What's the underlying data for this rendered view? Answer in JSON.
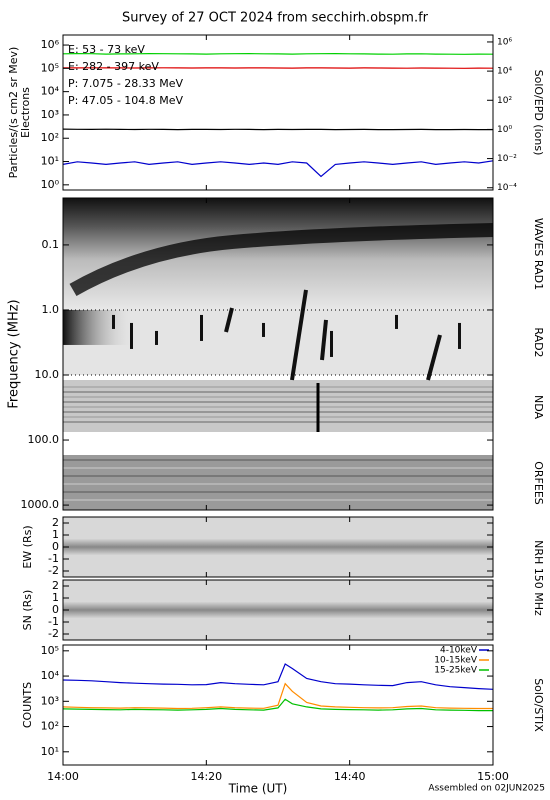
{
  "title": "Survey of 27 OCT 2024 from secchirh.obspm.fr",
  "footer": "Assembled on 02JUN2025",
  "chart_data": [
    {
      "type": "line",
      "log": true,
      "ylabel": "Particles/(s cm2 sr Mev)",
      "ylabel2": "Electrons",
      "y2label": "SolO/EPD (ions)",
      "xlim": [
        0,
        60
      ],
      "ylim": [
        0.6,
        2700000
      ],
      "y2lim": [
        7e-05,
        3000000
      ],
      "yticks": [
        {
          "value": 1,
          "label": "10⁰"
        },
        {
          "value": 10,
          "label": "10¹"
        },
        {
          "value": 100,
          "label": "10²"
        },
        {
          "value": 1000,
          "label": "10³"
        },
        {
          "value": 10000,
          "label": "10⁴"
        },
        {
          "value": 100000,
          "label": "10⁵"
        },
        {
          "value": 1000000,
          "label": "10⁶"
        }
      ],
      "y2ticks": [
        {
          "value": 0.0001,
          "label": "10⁻⁴"
        },
        {
          "value": 0.01,
          "label": "10⁻²"
        },
        {
          "value": 1,
          "label": "10⁰"
        },
        {
          "value": 100,
          "label": "10²"
        },
        {
          "value": 10000,
          "label": "10⁴"
        },
        {
          "value": 1000000,
          "label": "10⁶"
        }
      ],
      "x": [
        0,
        2,
        4,
        6,
        8,
        10,
        12,
        14,
        16,
        18,
        20,
        22,
        24,
        26,
        28,
        30,
        32,
        34,
        36,
        38,
        40,
        42,
        44,
        46,
        48,
        50,
        52,
        54,
        56,
        58,
        60
      ],
      "series": [
        {
          "name": "E: 53 - 73 keV",
          "color": "#00d000",
          "values": [
            420000,
            430000,
            425000,
            410000,
            415000,
            420000,
            430000,
            425000,
            420000,
            415000,
            410000,
            420000,
            425000,
            430000,
            420000,
            415000,
            410000,
            420000,
            425000,
            430000,
            420000,
            415000,
            410000,
            405000,
            415000,
            420000,
            410000,
            405000,
            400000,
            410000,
            405000
          ]
        },
        {
          "name": "E: 282 - 397 keV",
          "color": "#dd0000",
          "values": [
            105000,
            104000,
            106000,
            105000,
            104000,
            103000,
            105000,
            106000,
            104000,
            103000,
            105000,
            104000,
            103000,
            105000,
            104000,
            103000,
            102000,
            104000,
            105000,
            103000,
            102000,
            104000,
            103000,
            102000,
            101000,
            103000,
            102000,
            101000,
            100000,
            102000,
            101000
          ]
        },
        {
          "name": "P: 7.075 - 28.33 MeV",
          "color": "#000000",
          "axis": "y2",
          "values": [
            1.05,
            1.02,
            1.0,
            1.03,
            1.01,
            0.99,
            1.02,
            1.0,
            0.98,
            1.01,
            1.0,
            0.99,
            1.02,
            1.0,
            0.98,
            1.0,
            0.99,
            1.01,
            1.0,
            0.98,
            0.99,
            1.0,
            0.98,
            0.97,
            0.99,
            1.0,
            0.98,
            0.97,
            0.99,
            0.98,
            0.97
          ]
        },
        {
          "name": "P: 47.05 - 104.8 MeV",
          "color": "#0000cc",
          "axis": "y2",
          "values": [
            0.004,
            0.006,
            0.005,
            0.004,
            0.005,
            0.006,
            0.004,
            0.005,
            0.006,
            0.004,
            0.005,
            0.006,
            0.005,
            0.004,
            0.005,
            0.004,
            0.006,
            0.005,
            0.0006,
            0.004,
            0.005,
            0.006,
            0.005,
            0.004,
            0.005,
            0.006,
            0.004,
            0.005,
            0.006,
            0.005,
            0.007
          ]
        }
      ]
    },
    {
      "type": "spectrogram",
      "log": true,
      "invert": true,
      "ylabel": "Frequency (MHz)",
      "ylim": [
        0.019,
        1190
      ],
      "yticks": [
        0.1,
        {
          "value": 1,
          "label": "1.0"
        },
        {
          "value": 10,
          "label": "10.0"
        },
        {
          "value": 100,
          "label": "100.0"
        },
        {
          "value": 1000,
          "label": "1000.0"
        }
      ],
      "band_labels": [
        "WAVES RAD1",
        "RAD2",
        "NDA",
        "ORFEES"
      ]
    },
    {
      "type": "image",
      "ylabel": "EW (Rs)",
      "right_label": "NRH 150 MHz",
      "ylim": [
        -2.5,
        2.5
      ],
      "yticks": [
        -2,
        -1,
        0,
        1,
        2
      ]
    },
    {
      "type": "image",
      "ylabel": "SN (Rs)",
      "ylim": [
        -2.5,
        2.5
      ],
      "yticks": [
        -2,
        -1,
        0,
        1,
        2
      ]
    },
    {
      "type": "line",
      "log": true,
      "ylabel": "COUNTS",
      "right_label": "SolO/STIX",
      "xlabel": "Time (UT)",
      "xlim": [
        0,
        60
      ],
      "ylim": [
        3,
        170000
      ],
      "xticks": [
        {
          "value": 0,
          "label": "14:00"
        },
        {
          "value": 20,
          "label": "14:20"
        },
        {
          "value": 40,
          "label": "14:40"
        },
        {
          "value": 60,
          "label": "15:00"
        }
      ],
      "yticks": [
        {
          "value": 10,
          "label": "10¹"
        },
        {
          "value": 100,
          "label": "10²"
        },
        {
          "value": 1000,
          "label": "10³"
        },
        {
          "value": 10000,
          "label": "10⁴"
        },
        {
          "value": 100000,
          "label": "10⁵"
        }
      ],
      "x": [
        0,
        2,
        4,
        6,
        8,
        10,
        12,
        14,
        16,
        18,
        20,
        22,
        24,
        26,
        28,
        30,
        31,
        32,
        34,
        36,
        38,
        40,
        42,
        44,
        46,
        48,
        50,
        52,
        54,
        56,
        58,
        60
      ],
      "series": [
        {
          "name": "4-10keV",
          "color": "#0000cc",
          "values": [
            7000,
            6800,
            6500,
            6000,
            5500,
            5200,
            5000,
            4800,
            4700,
            4500,
            4600,
            5500,
            5000,
            4700,
            4500,
            6000,
            30000,
            20000,
            8000,
            6000,
            5000,
            4800,
            4500,
            4300,
            4200,
            5500,
            6000,
            4500,
            3800,
            3500,
            3200,
            3000
          ]
        },
        {
          "name": "10-15keV",
          "color": "#ff8c00",
          "values": [
            600,
            580,
            560,
            550,
            540,
            560,
            550,
            540,
            520,
            530,
            560,
            600,
            560,
            540,
            530,
            700,
            5000,
            2500,
            900,
            650,
            600,
            580,
            560,
            550,
            560,
            620,
            650,
            560,
            540,
            530,
            520,
            520
          ]
        },
        {
          "name": "15-25keV",
          "color": "#00c000",
          "values": [
            500,
            490,
            480,
            470,
            460,
            480,
            470,
            460,
            450,
            460,
            480,
            520,
            480,
            460,
            450,
            550,
            1200,
            800,
            600,
            500,
            480,
            470,
            460,
            450,
            460,
            500,
            520,
            460,
            450,
            440,
            430,
            430
          ]
        }
      ]
    }
  ]
}
